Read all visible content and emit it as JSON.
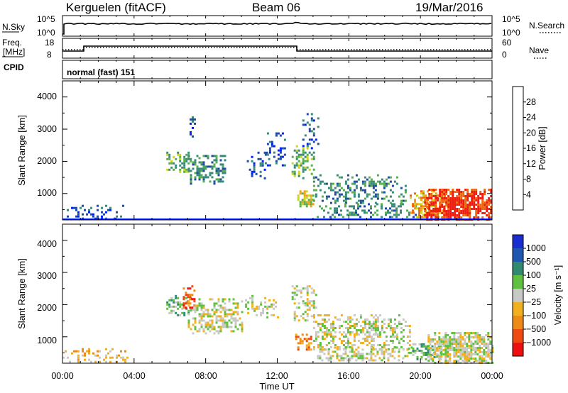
{
  "header": {
    "station": "Kerguelen (fitACF)",
    "beam": "Beam 06",
    "date": "19/Mar/2016"
  },
  "top_panels": {
    "nsky_label": "N.Sky",
    "nsky_ticks": [
      "10^5",
      "10^0"
    ],
    "nsearch_label": "N.Search",
    "nsearch_ticks": [
      "10^5",
      "10^0"
    ],
    "freq_label": "Freq.",
    "freq_unit": "[MHz]",
    "freq_ticks": [
      "18",
      "8"
    ],
    "nave_label": "Nave",
    "nave_ticks": [
      "60",
      "0"
    ],
    "cpid_label": "CPID",
    "cpid_value": "normal (fast) 151"
  },
  "x_axis": {
    "label": "Time UT",
    "ticks": [
      "00:00",
      "04:00",
      "08:00",
      "12:00",
      "16:00",
      "20:00",
      "00:00"
    ]
  },
  "colors": {
    "power_scale": [
      "#0020ff",
      "#1f4ca0",
      "#3a8a7c",
      "#55b04a",
      "#ccd41e",
      "#f0a018",
      "#ee6a10",
      "#ee1f10"
    ],
    "velocity_scale": [
      "#1a2ed0",
      "#1f58b0",
      "#2f8a70",
      "#60c040",
      "#c8c8c4",
      "#f0b020",
      "#ee8a18",
      "#ee4a12",
      "#ee1010"
    ]
  },
  "chart_data": [
    {
      "type": "heatmap",
      "title": "Power",
      "ylabel": "Slant Range [km]",
      "ylim": [
        180,
        4500
      ],
      "xlabel": "Time UT",
      "y_ticks": [
        "1000",
        "2000",
        "3000",
        "4000"
      ],
      "colorbar_label": "Power [dB]",
      "colorbar_ticks": [
        "4",
        "8",
        "12",
        "16",
        "20",
        "24",
        "28"
      ],
      "blobs": [
        {
          "t0": 0.0,
          "t1": 3.4,
          "r0": 200,
          "r1": 650,
          "level": 1,
          "density": 0.35
        },
        {
          "t0": 5.8,
          "t1": 7.2,
          "r0": 1700,
          "r1": 2300,
          "level": 3,
          "density": 0.6
        },
        {
          "t0": 7.0,
          "t1": 9.1,
          "r0": 1300,
          "r1": 2200,
          "level": 2,
          "density": 0.55
        },
        {
          "t0": 7.1,
          "t1": 7.4,
          "r0": 2400,
          "r1": 3400,
          "level": 1,
          "density": 0.25
        },
        {
          "t0": 10.3,
          "t1": 11.5,
          "r0": 1500,
          "r1": 2300,
          "level": 1,
          "density": 0.3
        },
        {
          "t0": 11.3,
          "t1": 12.4,
          "r0": 1900,
          "r1": 2900,
          "level": 1,
          "density": 0.3
        },
        {
          "t0": 12.8,
          "t1": 14.0,
          "r0": 1500,
          "r1": 2500,
          "level": 3,
          "density": 0.5
        },
        {
          "t0": 13.0,
          "t1": 14.0,
          "r0": 600,
          "r1": 1100,
          "level": 4,
          "density": 0.6
        },
        {
          "t0": 13.4,
          "t1": 14.3,
          "r0": 2400,
          "r1": 3500,
          "level": 1,
          "density": 0.25
        },
        {
          "t0": 14.0,
          "t1": 19.2,
          "r0": 700,
          "r1": 1600,
          "level": 2,
          "density": 0.4
        },
        {
          "t0": 14.2,
          "t1": 19.8,
          "r0": 250,
          "r1": 700,
          "level": 2,
          "density": 0.45
        },
        {
          "t0": 19.4,
          "t1": 21.5,
          "r0": 250,
          "r1": 1100,
          "level": 5,
          "density": 0.7
        },
        {
          "t0": 20.2,
          "t1": 24.0,
          "r0": 200,
          "r1": 1150,
          "level": 7,
          "density": 0.92
        }
      ]
    },
    {
      "type": "heatmap",
      "title": "Velocity",
      "ylabel": "Slant Range [km]",
      "ylim": [
        180,
        4500
      ],
      "xlabel": "Time UT",
      "y_ticks": [
        "1000",
        "2000",
        "3000",
        "4000"
      ],
      "colorbar_label": "Velocity [m s⁻¹]",
      "colorbar_ticks": [
        "1000",
        "500",
        "100",
        "25",
        "−25",
        "−100",
        "−500",
        "−1000"
      ],
      "blobs": [
        {
          "t0": 0.0,
          "t1": 3.6,
          "r0": 200,
          "r1": 650,
          "level": 5,
          "density": 0.3
        },
        {
          "t0": 5.8,
          "t1": 7.2,
          "r0": 1700,
          "r1": 2300,
          "level": 3,
          "density": 0.55
        },
        {
          "t0": 6.6,
          "t1": 7.4,
          "r0": 1900,
          "r1": 2600,
          "level": 7,
          "density": 0.55
        },
        {
          "t0": 7.0,
          "t1": 10.0,
          "r0": 1100,
          "r1": 2200,
          "level": 4,
          "density": 0.55
        },
        {
          "t0": 10.2,
          "t1": 12.0,
          "r0": 1600,
          "r1": 2300,
          "level": 4,
          "density": 0.35
        },
        {
          "t0": 12.8,
          "t1": 14.2,
          "r0": 1500,
          "r1": 2600,
          "level": 4,
          "density": 0.45
        },
        {
          "t0": 13.0,
          "t1": 13.9,
          "r0": 600,
          "r1": 1100,
          "level": 6,
          "density": 0.65
        },
        {
          "t0": 14.0,
          "t1": 19.4,
          "r0": 600,
          "r1": 1700,
          "level": 4,
          "density": 0.45
        },
        {
          "t0": 14.1,
          "t1": 19.6,
          "r0": 250,
          "r1": 700,
          "level": 4,
          "density": 0.5
        },
        {
          "t0": 19.3,
          "t1": 21.2,
          "r0": 300,
          "r1": 800,
          "level": 3,
          "density": 0.75
        },
        {
          "t0": 20.4,
          "t1": 24.0,
          "r0": 200,
          "r1": 1150,
          "level": 4,
          "density": 0.9
        }
      ]
    }
  ]
}
